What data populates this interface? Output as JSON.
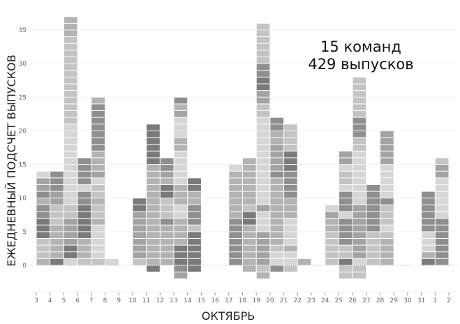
{
  "chart_data": {
    "type": "bar",
    "stacked": true,
    "xlabel": "ОКТЯБРЬ",
    "ylabel": "ЕЖЕДНЕВНЫЙ ПОДСЧЕТ ВЫПУСКОВ",
    "annotation": [
      "15 команд",
      "429 выпусков"
    ],
    "x_ticks": [
      "3",
      "4",
      "5",
      "6",
      "7",
      "8",
      "9",
      "10",
      "11",
      "12",
      "13",
      "14",
      "15",
      "16",
      "17",
      "18",
      "19",
      "20",
      "21",
      "22",
      "23",
      "24",
      "25",
      "26",
      "27",
      "28",
      "29",
      "30",
      "31",
      "1",
      "2"
    ],
    "y_ticks": [
      0,
      5,
      10,
      15,
      20,
      25,
      30,
      35
    ],
    "ylim": [
      -4,
      38
    ],
    "grid": true,
    "categories": [
      "3",
      "4",
      "5",
      "6",
      "7",
      "8",
      "9",
      "10",
      "11",
      "12",
      "13",
      "14",
      "15",
      "16",
      "17",
      "18",
      "19",
      "20",
      "21",
      "22",
      "23",
      "24",
      "25",
      "26",
      "27",
      "28",
      "29",
      "30",
      "31",
      "1"
    ],
    "positive": [
      14,
      14,
      37,
      16,
      25,
      1,
      0,
      10,
      21,
      16,
      25,
      13,
      0,
      0,
      15,
      16,
      36,
      22,
      21,
      1,
      0,
      9,
      17,
      28,
      12,
      20,
      0,
      0,
      11,
      16
    ],
    "negative": [
      0,
      0,
      0,
      0,
      0,
      0,
      0,
      0,
      -1,
      0,
      -2,
      -1,
      0,
      0,
      0,
      -1,
      -2,
      -1,
      -1,
      0,
      0,
      0,
      -2,
      -2,
      0,
      0,
      0,
      0,
      0,
      0
    ],
    "colors": [
      "#d6d6d6",
      "#c4c4c4",
      "#b3b3b3",
      "#a3a3a3",
      "#8f8f8f",
      "#7a7a7a"
    ]
  }
}
